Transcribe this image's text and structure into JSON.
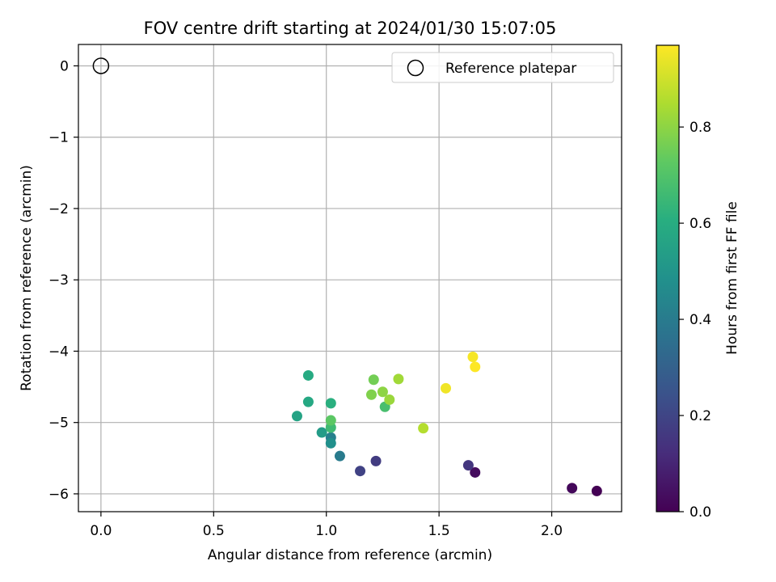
{
  "chart_data": {
    "type": "scatter",
    "title": "FOV centre drift starting at 2024/01/30 15:07:05",
    "xlabel": "Angular distance from reference (arcmin)",
    "ylabel": "Rotation from reference (arcmin)",
    "xlim": [
      -0.1,
      2.31
    ],
    "ylim": [
      -6.25,
      0.3
    ],
    "xticks": [
      0.0,
      0.5,
      1.0,
      1.5,
      2.0
    ],
    "xtick_labels": [
      "0.0",
      "0.5",
      "1.0",
      "1.5",
      "2.0"
    ],
    "yticks": [
      0,
      -1,
      -2,
      -3,
      -4,
      -5,
      -6
    ],
    "ytick_labels": [
      "0",
      "−1",
      "−2",
      "−3",
      "−4",
      "−5",
      "−6"
    ],
    "grid": true,
    "legend": {
      "placement": "top-right",
      "entries": [
        "Reference platepar"
      ]
    },
    "reference_point": {
      "x": 0.0,
      "y": 0.0,
      "marker": "open-circle",
      "label": "Reference platepar"
    },
    "colorbar": {
      "label": "Hours from first FF file",
      "colormap": "viridis",
      "range": [
        0.0,
        0.97
      ],
      "ticks": [
        0.0,
        0.2,
        0.4,
        0.6,
        0.8
      ],
      "tick_labels": [
        "0.0",
        "0.2",
        "0.4",
        "0.6",
        "0.8"
      ]
    },
    "points": [
      {
        "x": 2.2,
        "y": -5.96,
        "hours": 0.0
      },
      {
        "x": 2.09,
        "y": -5.92,
        "hours": 0.02
      },
      {
        "x": 1.66,
        "y": -5.7,
        "hours": 0.03
      },
      {
        "x": 1.63,
        "y": -5.6,
        "hours": 0.15
      },
      {
        "x": 1.22,
        "y": -5.54,
        "hours": 0.17
      },
      {
        "x": 1.15,
        "y": -5.68,
        "hours": 0.19
      },
      {
        "x": 1.06,
        "y": -5.47,
        "hours": 0.4
      },
      {
        "x": 1.02,
        "y": -5.21,
        "hours": 0.42
      },
      {
        "x": 1.02,
        "y": -5.29,
        "hours": 0.48
      },
      {
        "x": 0.98,
        "y": -5.14,
        "hours": 0.53
      },
      {
        "x": 0.87,
        "y": -4.91,
        "hours": 0.56
      },
      {
        "x": 0.92,
        "y": -4.71,
        "hours": 0.58
      },
      {
        "x": 0.92,
        "y": -4.34,
        "hours": 0.59
      },
      {
        "x": 1.02,
        "y": -4.73,
        "hours": 0.61
      },
      {
        "x": 1.02,
        "y": -5.07,
        "hours": 0.66
      },
      {
        "x": 1.02,
        "y": -4.97,
        "hours": 0.72
      },
      {
        "x": 1.26,
        "y": -4.78,
        "hours": 0.68
      },
      {
        "x": 1.21,
        "y": -4.4,
        "hours": 0.76
      },
      {
        "x": 1.2,
        "y": -4.61,
        "hours": 0.78
      },
      {
        "x": 1.25,
        "y": -4.57,
        "hours": 0.8
      },
      {
        "x": 1.28,
        "y": -4.68,
        "hours": 0.82
      },
      {
        "x": 1.32,
        "y": -4.39,
        "hours": 0.83
      },
      {
        "x": 1.43,
        "y": -5.08,
        "hours": 0.86
      },
      {
        "x": 1.53,
        "y": -4.52,
        "hours": 0.95
      },
      {
        "x": 1.65,
        "y": -4.08,
        "hours": 0.96
      },
      {
        "x": 1.66,
        "y": -4.22,
        "hours": 0.97
      }
    ]
  }
}
